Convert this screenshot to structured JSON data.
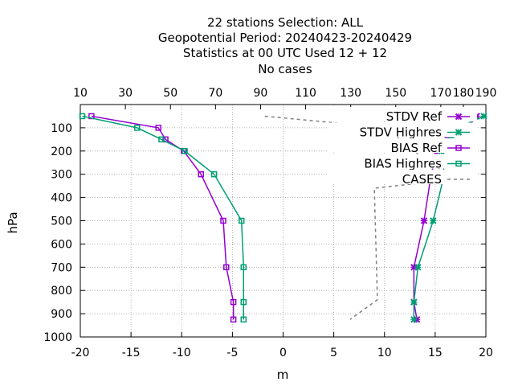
{
  "chart_data": {
    "type": "line",
    "title_lines": [
      "22 stations Selection: ALL",
      "Geopotential  Period: 20240423-20240429",
      "Statistics at 00 UTC  Used  12 + 12",
      "No cases"
    ],
    "xlabel": "m",
    "ylabel": "hPa",
    "xlim": [
      -20,
      20
    ],
    "ylim": [
      1000,
      0
    ],
    "x_ticks": [
      "-20",
      "-15",
      "-10",
      "-5",
      "0",
      "5",
      "10",
      "15",
      "20"
    ],
    "y_ticks": [
      "100",
      "200",
      "300",
      "400",
      "500",
      "600",
      "700",
      "800",
      "900",
      "1000"
    ],
    "x2_ticks": [
      "10",
      "30",
      "50",
      "70",
      "90",
      "110",
      "130",
      "150",
      "170",
      "180",
      "190"
    ],
    "x2_note": "top axis = CASES",
    "grid": true,
    "legend_position": "top-right",
    "series": [
      {
        "name": "STDV Ref",
        "color": "#9400d3",
        "marker": "x",
        "points": [
          {
            "x": 19.1,
            "p": 50
          },
          {
            "x": 18.2,
            "p": 100
          },
          {
            "x": 16.2,
            "p": 150
          },
          {
            "x": 15.2,
            "p": 200
          },
          {
            "x": 14.6,
            "p": 300
          },
          {
            "x": 13.9,
            "p": 500
          },
          {
            "x": 12.9,
            "p": 700
          },
          {
            "x": 12.9,
            "p": 850
          },
          {
            "x": 13.2,
            "p": 925
          }
        ]
      },
      {
        "name": "STDV Highres",
        "color": "#009e73",
        "marker": "x",
        "points": [
          {
            "x": 19.8,
            "p": 50
          },
          {
            "x": 17.2,
            "p": 100
          },
          {
            "x": 16.6,
            "p": 150
          },
          {
            "x": 15.6,
            "p": 200
          },
          {
            "x": 15.9,
            "p": 300
          },
          {
            "x": 14.8,
            "p": 500
          },
          {
            "x": 13.3,
            "p": 700
          },
          {
            "x": 12.9,
            "p": 850
          },
          {
            "x": 12.9,
            "p": 925
          }
        ]
      },
      {
        "name": "BIAS Ref",
        "color": "#9400d3",
        "marker": "square",
        "points": [
          {
            "x": -18.9,
            "p": 50
          },
          {
            "x": -12.3,
            "p": 100
          },
          {
            "x": -11.6,
            "p": 150
          },
          {
            "x": -9.8,
            "p": 200
          },
          {
            "x": -8.1,
            "p": 300
          },
          {
            "x": -5.9,
            "p": 500
          },
          {
            "x": -5.6,
            "p": 700
          },
          {
            "x": -4.9,
            "p": 850
          },
          {
            "x": -4.9,
            "p": 925
          }
        ]
      },
      {
        "name": "BIAS Highres",
        "color": "#009e73",
        "marker": "square",
        "points": [
          {
            "x": -19.8,
            "p": 50
          },
          {
            "x": -14.4,
            "p": 100
          },
          {
            "x": -12.0,
            "p": 150
          },
          {
            "x": -9.7,
            "p": 200
          },
          {
            "x": -6.8,
            "p": 300
          },
          {
            "x": -4.1,
            "p": 500
          },
          {
            "x": -3.9,
            "p": 700
          },
          {
            "x": -3.9,
            "p": 850
          },
          {
            "x": -3.9,
            "p": 925
          }
        ]
      },
      {
        "name": "CASES",
        "color": "#808080",
        "marker": "none",
        "dashed": true,
        "points": [
          {
            "x": -1.8,
            "p": 50
          },
          {
            "x": 10.2,
            "p": 100
          },
          {
            "x": 14.3,
            "p": 250
          },
          {
            "x": 17.2,
            "p": 320
          },
          {
            "x": 9.0,
            "p": 360
          },
          {
            "x": 9.3,
            "p": 840
          },
          {
            "x": 6.6,
            "p": 925
          }
        ]
      }
    ]
  }
}
